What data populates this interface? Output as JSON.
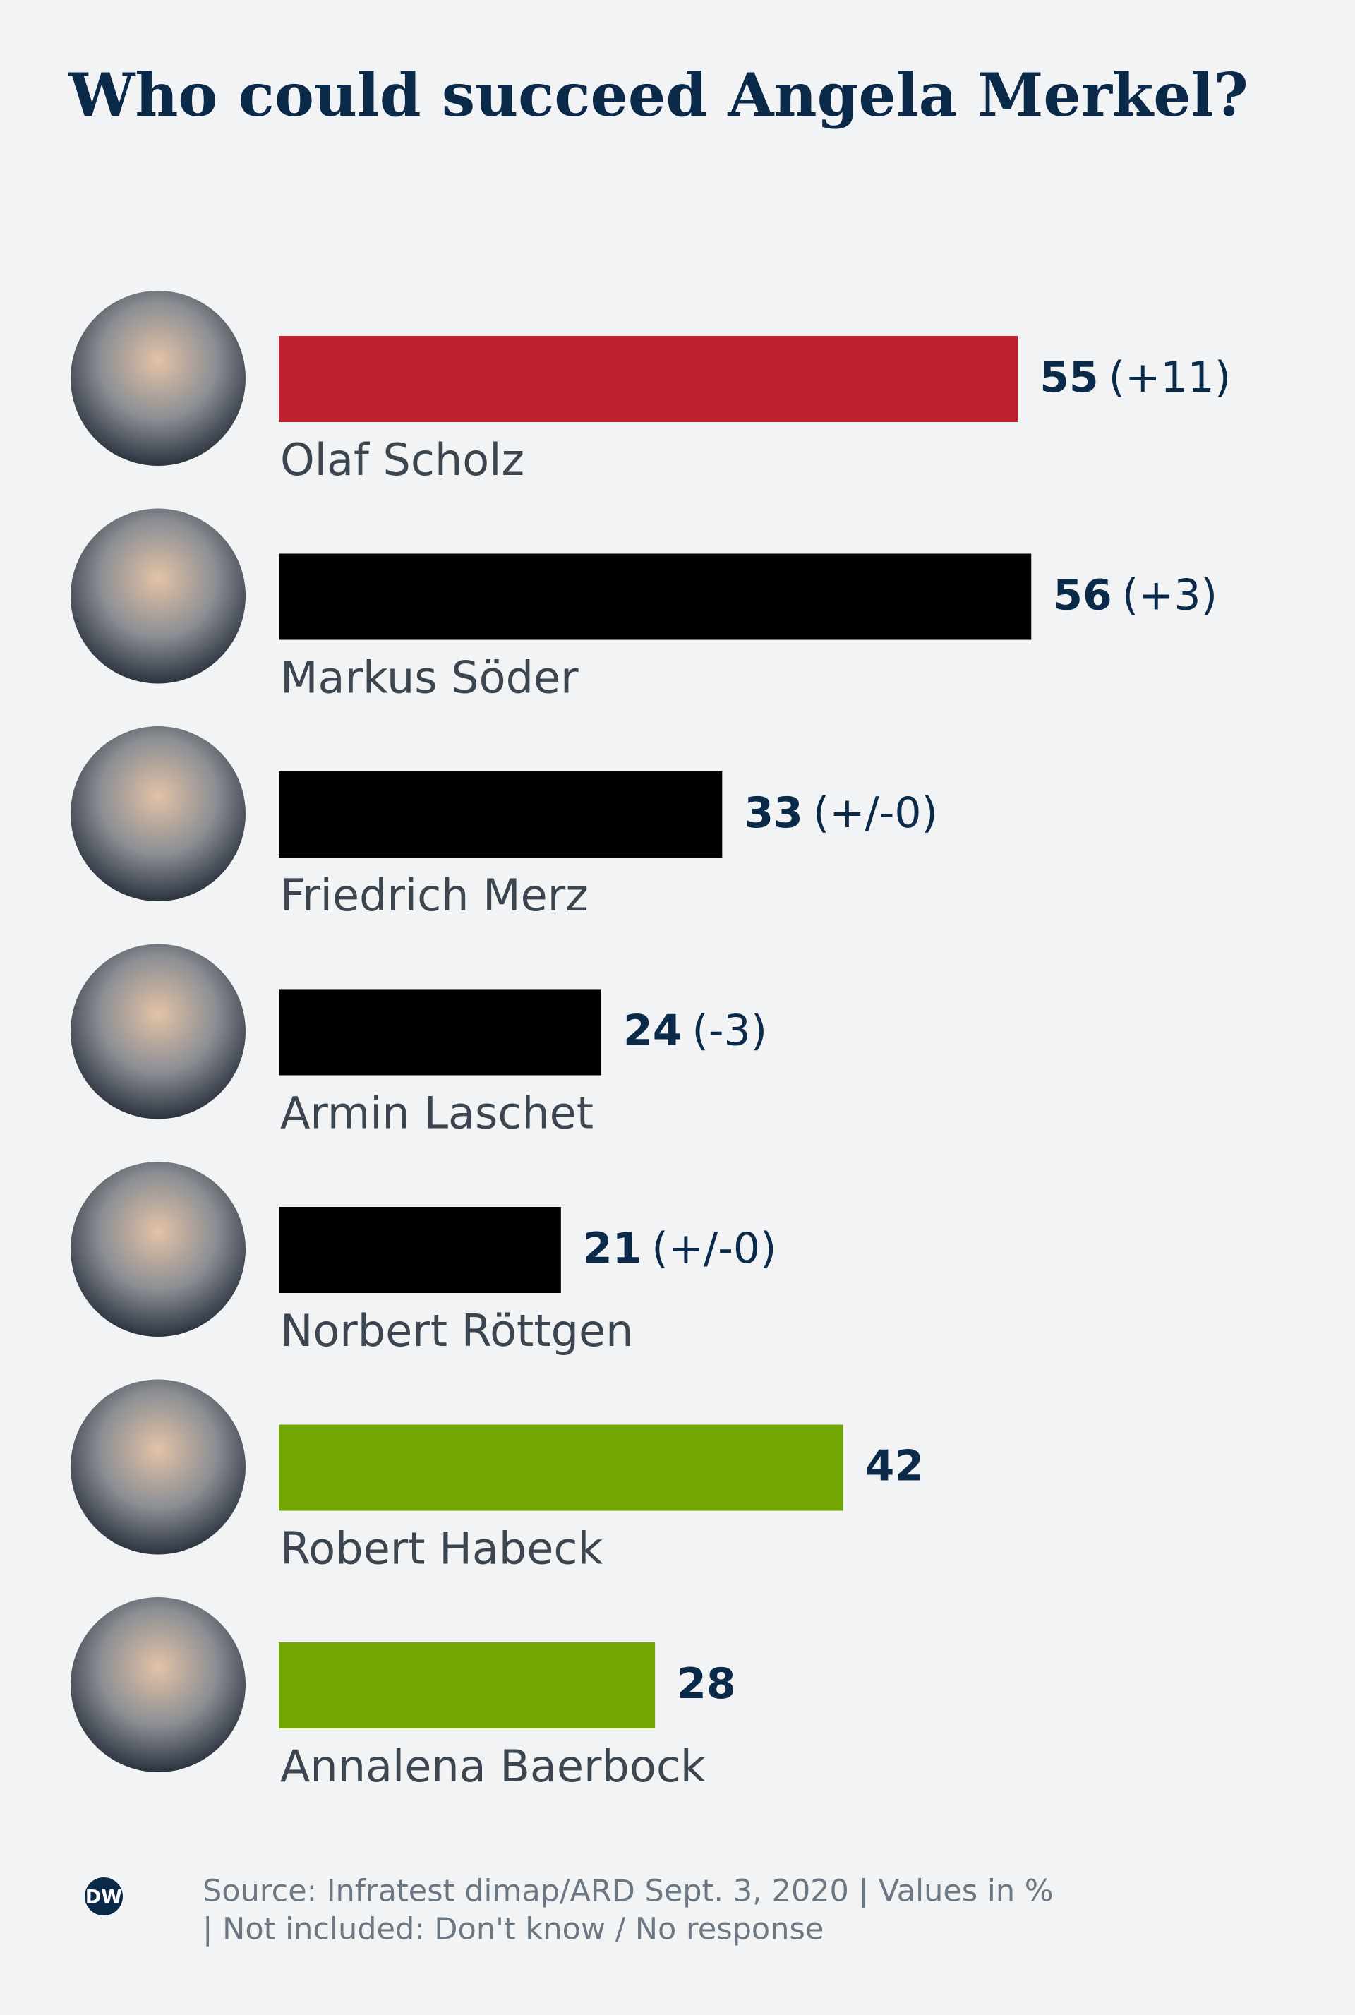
{
  "chart_data": {
    "type": "bar",
    "orientation": "horizontal",
    "title": "Who could succeed Angela Merkel?",
    "categories": [
      "Olaf Scholz",
      "Markus Söder",
      "Friedrich Merz",
      "Armin Laschet",
      "Norbert Röttgen",
      "Robert Habeck",
      "Annalena Baerbock"
    ],
    "values": [
      55,
      56,
      33,
      24,
      21,
      42,
      28
    ],
    "changes": [
      "(+11)",
      "(+3)",
      "(+/-0)",
      "(-3)",
      "(+/-0)",
      null,
      null
    ],
    "colors": [
      "#be202e",
      "#000000",
      "#000000",
      "#000000",
      "#000000",
      "#72a603",
      "#72a603"
    ],
    "logo": "DW",
    "source": [
      "Source: Infratest dimap/ARD Sept. 3, 2020 | Values in %",
      "| Not included: Don't know / No response"
    ]
  }
}
